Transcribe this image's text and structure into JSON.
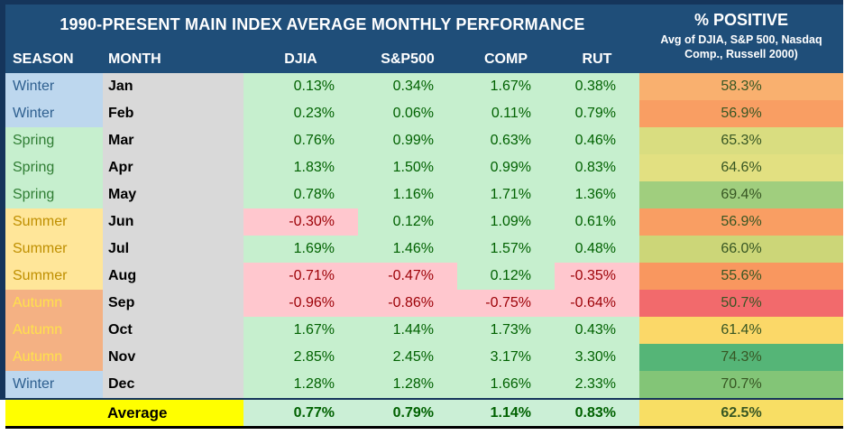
{
  "palette": {
    "navy": "#1F4E79",
    "frame": "#15355B",
    "winter-bg": "#BDD7EE",
    "winter-text": "#2E5F8F",
    "spring-bg": "#C6EFCE",
    "spring-text": "#2F7D33",
    "summer-bg": "#FFE699",
    "summer-text": "#BF8F00",
    "autumn-bg": "#F4B183",
    "autumn-text": "#FFE14C",
    "month-bg": "#D9D9D9",
    "good-bg": "#C6EFCE",
    "good-text": "#006100",
    "bad-bg": "#FFC7CE",
    "bad-text": "#9C0006",
    "pos-text": "#375623",
    "avg-label-bg": "#FFFF00",
    "avg-val-bg": "#CBEFD6"
  },
  "header": {
    "title": "1990-PRESENT MAIN INDEX AVERAGE MONTHLY PERFORMANCE",
    "positive_title": "% POSITIVE",
    "positive_subtitle_line1": "Avg of DJIA, S&P 500, Nasdaq",
    "positive_subtitle_line2": "Comp., Russell 2000)"
  },
  "columns": {
    "season": "SEASON",
    "month": "MONTH",
    "djia": "DJIA",
    "sp500": "S&P500",
    "comp": "COMP",
    "rut": "RUT"
  },
  "rows": [
    {
      "season": "Winter",
      "season_key": "winter",
      "month": "Jan",
      "djia": "0.13%",
      "sp500": "0.34%",
      "comp": "1.67%",
      "rut": "0.38%",
      "positive": "58.3%",
      "positive_bg": "#F9B06F"
    },
    {
      "season": "Winter",
      "season_key": "winter",
      "month": "Feb",
      "djia": "0.23%",
      "sp500": "0.06%",
      "comp": "0.11%",
      "rut": "0.79%",
      "positive": "56.9%",
      "positive_bg": "#F99E63"
    },
    {
      "season": "Spring",
      "season_key": "spring",
      "month": "Mar",
      "djia": "0.76%",
      "sp500": "0.99%",
      "comp": "0.63%",
      "rut": "0.46%",
      "positive": "65.3%",
      "positive_bg": "#D9DD80"
    },
    {
      "season": "Spring",
      "season_key": "spring",
      "month": "Apr",
      "djia": "1.83%",
      "sp500": "1.50%",
      "comp": "0.99%",
      "rut": "0.83%",
      "positive": "64.6%",
      "positive_bg": "#E2E081"
    },
    {
      "season": "Spring",
      "season_key": "spring",
      "month": "May",
      "djia": "0.78%",
      "sp500": "1.16%",
      "comp": "1.71%",
      "rut": "1.36%",
      "positive": "69.4%",
      "positive_bg": "#A0CE7E"
    },
    {
      "season": "Summer",
      "season_key": "summer",
      "month": "Jun",
      "djia": "-0.30%",
      "sp500": "0.12%",
      "comp": "1.09%",
      "rut": "0.61%",
      "positive": "56.9%",
      "positive_bg": "#F99E63"
    },
    {
      "season": "Summer",
      "season_key": "summer",
      "month": "Jul",
      "djia": "1.69%",
      "sp500": "1.46%",
      "comp": "1.57%",
      "rut": "0.48%",
      "positive": "66.0%",
      "positive_bg": "#CCD678"
    },
    {
      "season": "Summer",
      "season_key": "summer",
      "month": "Aug",
      "djia": "-0.71%",
      "sp500": "-0.47%",
      "comp": "0.12%",
      "rut": "-0.35%",
      "positive": "55.6%",
      "positive_bg": "#F9975F"
    },
    {
      "season": "Autumn",
      "season_key": "autumn",
      "month": "Sep",
      "djia": "-0.96%",
      "sp500": "-0.86%",
      "comp": "-0.75%",
      "rut": "-0.64%",
      "positive": "50.7%",
      "positive_bg": "#F26A6C"
    },
    {
      "season": "Autumn",
      "season_key": "autumn",
      "month": "Oct",
      "djia": "1.67%",
      "sp500": "1.44%",
      "comp": "1.73%",
      "rut": "0.43%",
      "positive": "61.4%",
      "positive_bg": "#FBD868"
    },
    {
      "season": "Autumn",
      "season_key": "autumn",
      "month": "Nov",
      "djia": "2.85%",
      "sp500": "2.45%",
      "comp": "3.17%",
      "rut": "3.30%",
      "positive": "74.3%",
      "positive_bg": "#55B577"
    },
    {
      "season": "Winter",
      "season_key": "winter",
      "month": "Dec",
      "djia": "1.28%",
      "sp500": "1.28%",
      "comp": "1.66%",
      "rut": "2.33%",
      "positive": "70.7%",
      "positive_bg": "#83C577"
    }
  ],
  "average": {
    "label": "Average",
    "djia": "0.77%",
    "sp500": "0.79%",
    "comp": "1.14%",
    "rut": "0.83%",
    "positive": "62.5%",
    "positive_bg": "#F8DE64"
  },
  "chart_data": {
    "type": "table",
    "title": "1990-PRESENT MAIN INDEX AVERAGE MONTHLY PERFORMANCE",
    "positive_column_note": "% POSITIVE — Avg of DJIA, S&P 500, Nasdaq Comp., Russell 2000)",
    "columns": [
      "SEASON",
      "MONTH",
      "DJIA",
      "S&P500",
      "COMP",
      "RUT",
      "% POSITIVE"
    ],
    "units": "percent",
    "rows": [
      [
        "Winter",
        "Jan",
        0.13,
        0.34,
        1.67,
        0.38,
        58.3
      ],
      [
        "Winter",
        "Feb",
        0.23,
        0.06,
        0.11,
        0.79,
        56.9
      ],
      [
        "Spring",
        "Mar",
        0.76,
        0.99,
        0.63,
        0.46,
        65.3
      ],
      [
        "Spring",
        "Apr",
        1.83,
        1.5,
        0.99,
        0.83,
        64.6
      ],
      [
        "Spring",
        "May",
        0.78,
        1.16,
        1.71,
        1.36,
        69.4
      ],
      [
        "Summer",
        "Jun",
        -0.3,
        0.12,
        1.09,
        0.61,
        56.9
      ],
      [
        "Summer",
        "Jul",
        1.69,
        1.46,
        1.57,
        0.48,
        66.0
      ],
      [
        "Summer",
        "Aug",
        -0.71,
        -0.47,
        0.12,
        -0.35,
        55.6
      ],
      [
        "Autumn",
        "Sep",
        -0.96,
        -0.86,
        -0.75,
        -0.64,
        50.7
      ],
      [
        "Autumn",
        "Oct",
        1.67,
        1.44,
        1.73,
        0.43,
        61.4
      ],
      [
        "Autumn",
        "Nov",
        2.85,
        2.45,
        3.17,
        3.3,
        74.3
      ],
      [
        "Winter",
        "Dec",
        1.28,
        1.28,
        1.66,
        2.33,
        70.7
      ]
    ],
    "average_row": [
      "",
      "Average",
      0.77,
      0.79,
      1.14,
      0.83,
      62.5
    ],
    "layout_hints": {
      "negative_cells_highlighted": "pink #FFC7CE with dark red text",
      "positive_cells": "green #C6EFCE with dark green text",
      "percent_positive_color_scale": "red-yellow-green, min 50.7 max 74.3"
    }
  }
}
